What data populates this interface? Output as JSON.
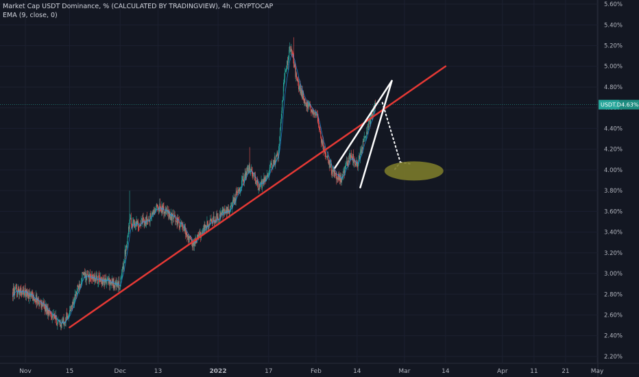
{
  "chart_data": {
    "type": "candlestick",
    "title": "Market Cap USDT Dominance, % (CALCULATED BY TRADINGVIEW), 4h, CRYPTOCAP",
    "indicator": "EMA (9, close, 0)",
    "symbol": "USDT.D",
    "last_price": "4.63%",
    "y_axis": {
      "unit": "%",
      "range": [
        2.16,
        5.62
      ],
      "ticks": [
        "2.20%",
        "2.40%",
        "2.60%",
        "2.80%",
        "3.00%",
        "3.20%",
        "3.40%",
        "3.60%",
        "3.80%",
        "4.00%",
        "4.20%",
        "4.40%",
        "4.60%",
        "4.80%",
        "5.00%",
        "5.20%",
        "5.40%",
        "5.60%"
      ]
    },
    "x_axis": {
      "ticks": [
        "Nov",
        "15",
        "Dec",
        "13",
        "2022",
        "17",
        "Feb",
        "14",
        "Mar",
        "14",
        "Apr",
        "11",
        "21",
        "May"
      ]
    },
    "series": [
      {
        "name": "USDT.D",
        "points": [
          [
            "2021-11-01",
            2.82
          ],
          [
            "2021-11-05",
            2.74
          ],
          [
            "2021-11-09",
            2.62
          ],
          [
            "2021-11-12",
            2.5
          ],
          [
            "2021-11-15",
            2.62
          ],
          [
            "2021-11-19",
            2.98
          ],
          [
            "2021-11-24",
            2.94
          ],
          [
            "2021-11-28",
            2.92
          ],
          [
            "2021-12-01",
            2.88
          ],
          [
            "2021-12-04",
            3.5
          ],
          [
            "2021-12-07",
            3.48
          ],
          [
            "2021-12-10",
            3.52
          ],
          [
            "2021-12-13",
            3.65
          ],
          [
            "2021-12-16",
            3.58
          ],
          [
            "2021-12-20",
            3.48
          ],
          [
            "2021-12-24",
            3.28
          ],
          [
            "2021-12-28",
            3.45
          ],
          [
            "2022-01-01",
            3.55
          ],
          [
            "2022-01-05",
            3.62
          ],
          [
            "2022-01-08",
            3.85
          ],
          [
            "2022-01-11",
            4.02
          ],
          [
            "2022-01-14",
            3.82
          ],
          [
            "2022-01-17",
            3.98
          ],
          [
            "2022-01-20",
            4.15
          ],
          [
            "2022-01-22",
            4.9
          ],
          [
            "2022-01-24",
            5.2
          ],
          [
            "2022-01-26",
            4.85
          ],
          [
            "2022-01-29",
            4.62
          ],
          [
            "2022-02-01",
            4.55
          ],
          [
            "2022-02-03",
            4.25
          ],
          [
            "2022-02-06",
            4.0
          ],
          [
            "2022-02-09",
            3.9
          ],
          [
            "2022-02-12",
            4.15
          ],
          [
            "2022-02-14",
            4.05
          ],
          [
            "2022-02-16",
            4.25
          ],
          [
            "2022-02-18",
            4.48
          ],
          [
            "2022-02-20",
            4.63
          ]
        ]
      }
    ],
    "annotations": [
      {
        "type": "trendline",
        "color": "#e53935",
        "from": [
          "2021-11-15",
          2.48
        ],
        "to": [
          "2022-03-14",
          5.0
        ]
      },
      {
        "type": "wedge-line",
        "color": "#ffffff",
        "from": [
          "2022-02-07",
          4.02
        ],
        "to": [
          "2022-02-25",
          4.86
        ]
      },
      {
        "type": "wedge-line",
        "color": "#ffffff",
        "from": [
          "2022-02-15",
          3.83
        ],
        "to": [
          "2022-02-25",
          4.86
        ]
      },
      {
        "type": "projection-dotted",
        "color": "#ffffff",
        "from": [
          "2022-02-22",
          4.65
        ],
        "to": [
          "2022-03-01",
          4.02
        ]
      },
      {
        "type": "target-zone",
        "color": "#7b7a2a",
        "center": [
          "2022-03-04",
          3.99
        ]
      }
    ]
  }
}
